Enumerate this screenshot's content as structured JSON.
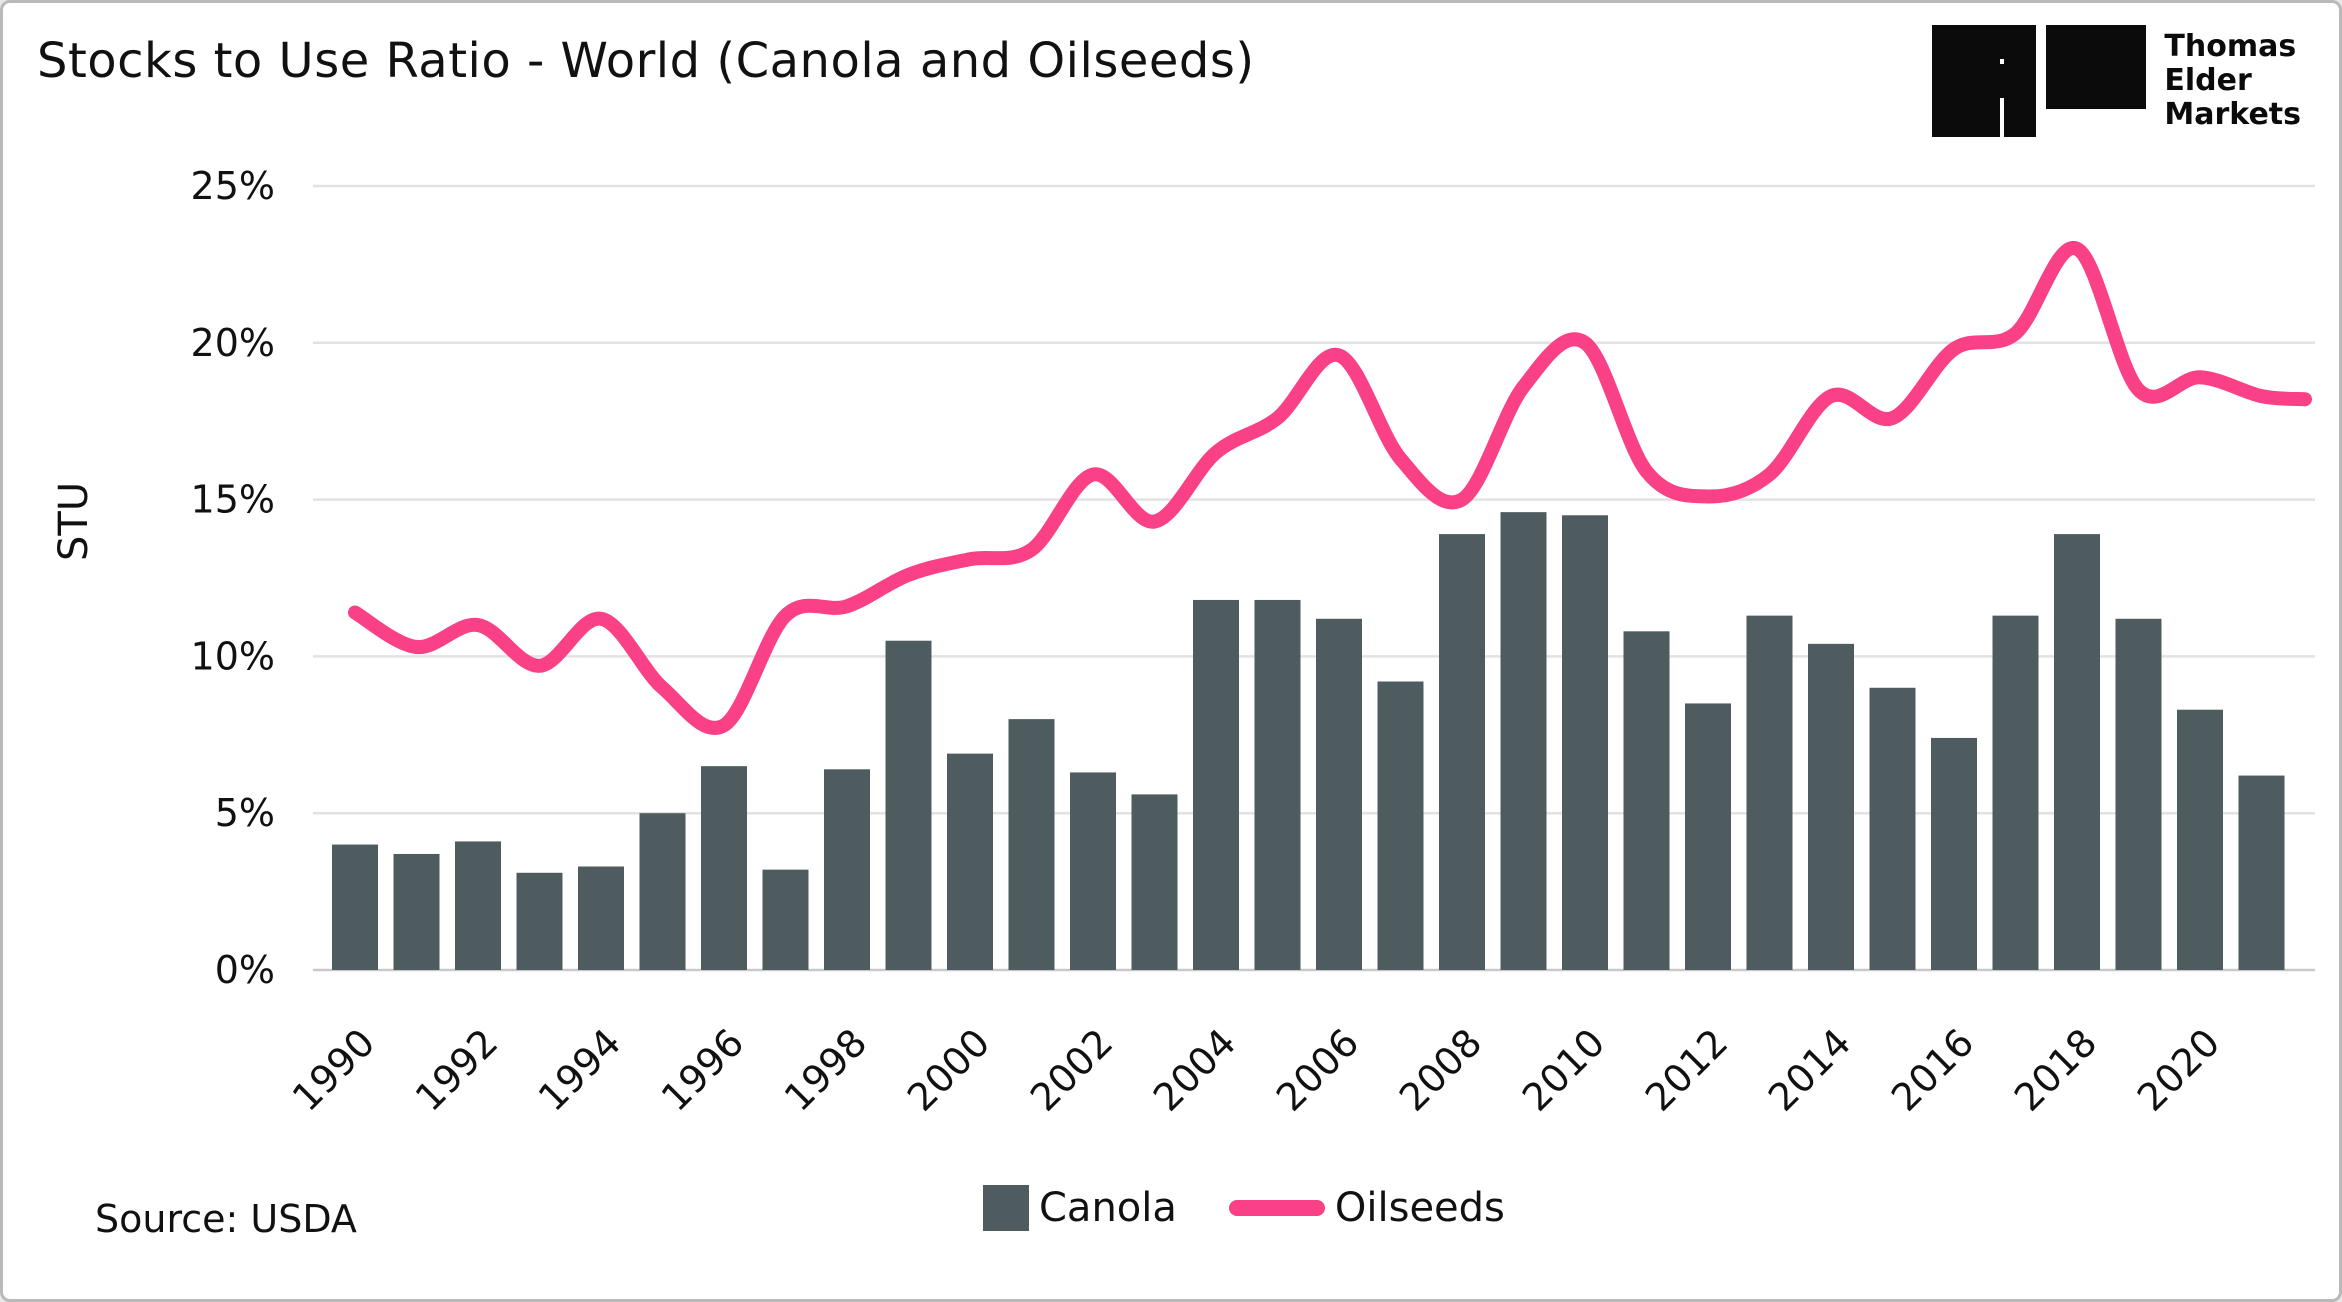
{
  "header": {
    "title": "Stocks to Use Ratio - World (Canola and Oilseeds)"
  },
  "logo": {
    "glyphs": [
      "plus-icon",
      "triple-bars-icon",
      "m-icon"
    ],
    "brand_lines": [
      "Thomas",
      "Elder",
      "Markets"
    ]
  },
  "source": {
    "label": "Source: USDA"
  },
  "colors": {
    "canola_bar": "#4e5c5f",
    "oilseeds_line": "#fa4086",
    "gridline": "#e2e2e2",
    "axis_line": "#c9c9c9",
    "text": "#111111"
  },
  "chart_data": {
    "type": "bar+line",
    "title": "Stocks to Use Ratio - World (Canola and Oilseeds)",
    "xlabel": "",
    "ylabel": "STU",
    "ylim": [
      0,
      25
    ],
    "grid": "horizontal",
    "legend_position": "bottom-center",
    "x": [
      1990,
      1991,
      1992,
      1993,
      1994,
      1995,
      1996,
      1997,
      1998,
      1999,
      2000,
      2001,
      2002,
      2003,
      2004,
      2005,
      2006,
      2007,
      2008,
      2009,
      2010,
      2011,
      2012,
      2013,
      2014,
      2015,
      2016,
      2017,
      2018,
      2019,
      2020,
      2021
    ],
    "xtick_labels": [
      "1990",
      "1992",
      "1994",
      "1996",
      "1998",
      "2000",
      "2002",
      "2004",
      "2006",
      "2008",
      "2010",
      "2012",
      "2014",
      "2016",
      "2018",
      "2020"
    ],
    "ytick_labels": [
      "0%",
      "5%",
      "10%",
      "15%",
      "20%",
      "25%"
    ],
    "series": [
      {
        "name": "Canola",
        "type": "bar",
        "unit": "%",
        "values": [
          4.0,
          3.7,
          4.1,
          3.1,
          3.3,
          5.0,
          6.5,
          3.2,
          6.4,
          10.5,
          6.9,
          8.0,
          6.3,
          5.6,
          11.8,
          11.8,
          11.2,
          9.2,
          13.9,
          14.6,
          14.5,
          10.8,
          8.5,
          11.3,
          10.4,
          9.0,
          7.4,
          11.3,
          13.9,
          11.2,
          8.3,
          6.2
        ]
      },
      {
        "name": "Oilseeds",
        "type": "line",
        "unit": "%",
        "values": [
          11.4,
          10.3,
          11.0,
          9.7,
          11.2,
          9.0,
          7.8,
          11.3,
          11.6,
          12.6,
          13.1,
          13.4,
          15.8,
          14.3,
          16.5,
          17.6,
          19.6,
          16.3,
          15.0,
          18.6,
          20.0,
          15.9,
          15.1,
          15.8,
          18.3,
          17.6,
          19.8,
          20.3,
          23.0,
          18.5,
          18.9,
          18.3
        ]
      }
    ]
  }
}
